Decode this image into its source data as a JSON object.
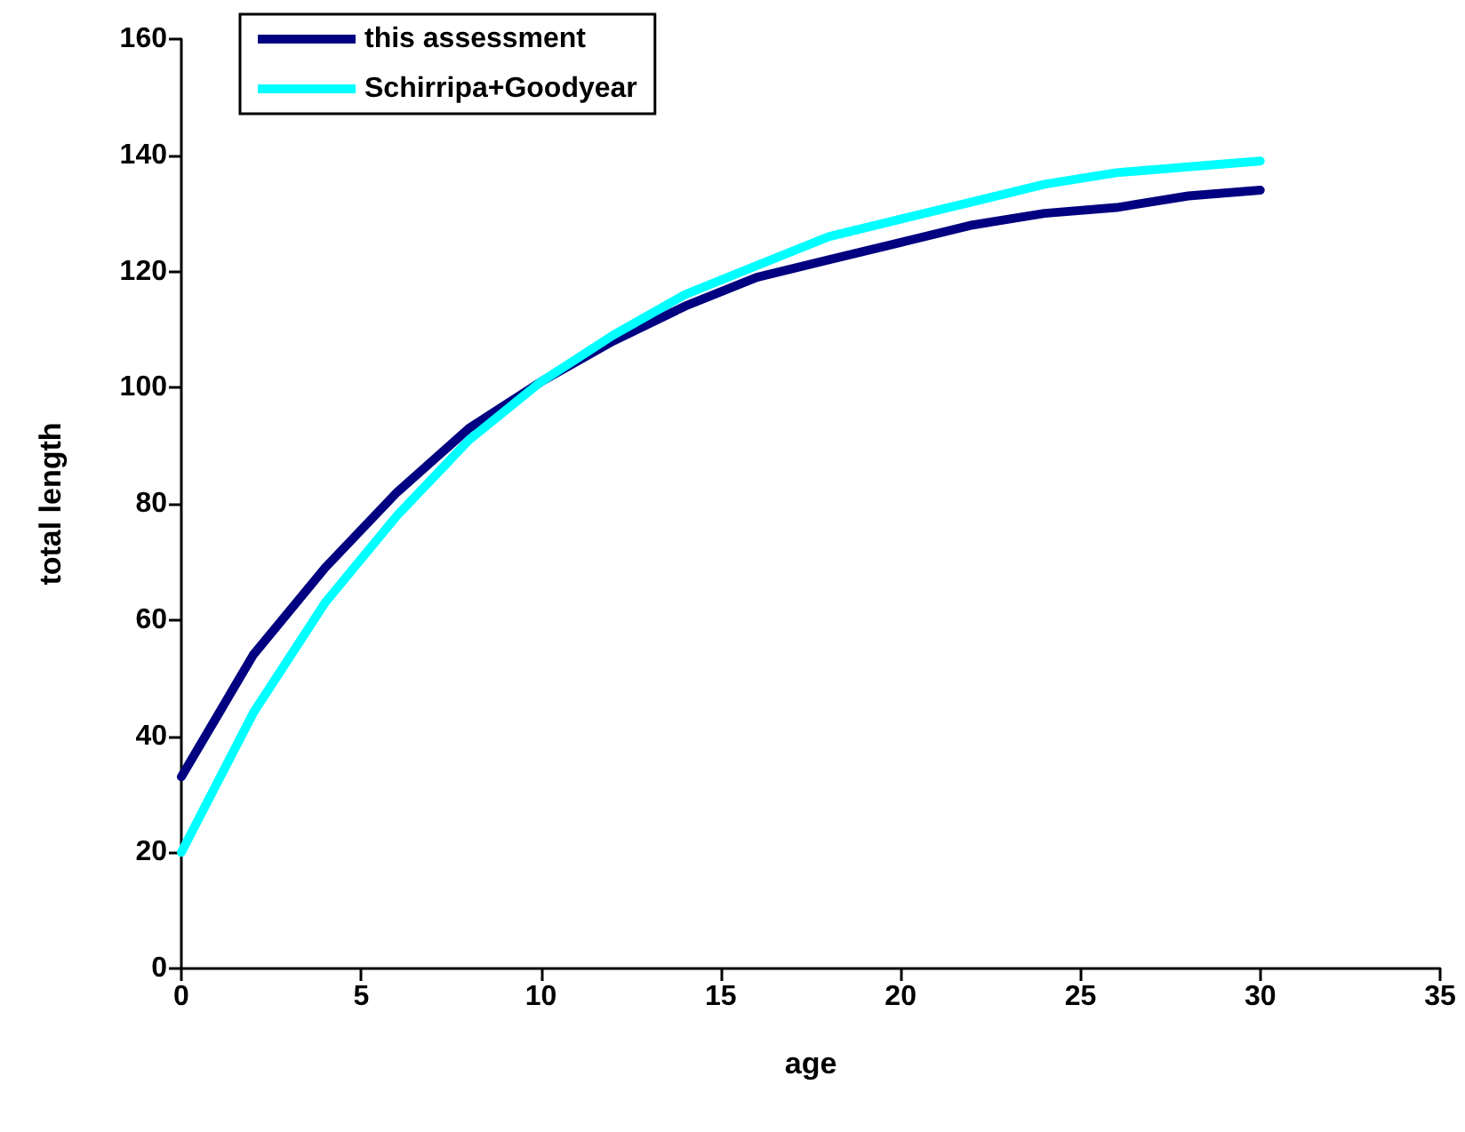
{
  "chart_data": {
    "type": "line",
    "xlabel": "age",
    "ylabel": "total length",
    "x": [
      0,
      2,
      4,
      6,
      8,
      10,
      12,
      14,
      16,
      18,
      20,
      22,
      24,
      26,
      28,
      30
    ],
    "series": [
      {
        "name": "this assessment",
        "color": "#000080",
        "values": [
          33,
          54,
          69,
          82,
          93,
          101,
          108,
          114,
          119,
          122,
          125,
          128,
          130,
          131,
          133,
          134
        ]
      },
      {
        "name": "Schirripa+Goodyear",
        "color": "#00ffff",
        "values": [
          20,
          44,
          63,
          78,
          91,
          101,
          109,
          116,
          121,
          126,
          129,
          132,
          135,
          137,
          138,
          139
        ]
      }
    ],
    "xlim": [
      0,
      35
    ],
    "xticks": [
      0,
      5,
      10,
      15,
      20,
      25,
      30,
      35
    ],
    "ylim": [
      0,
      160
    ],
    "yticks": [
      0,
      20,
      40,
      60,
      80,
      100,
      120,
      140,
      160
    ],
    "grid": false,
    "legend": "top left",
    "marker": "none",
    "line_style": "solid"
  }
}
